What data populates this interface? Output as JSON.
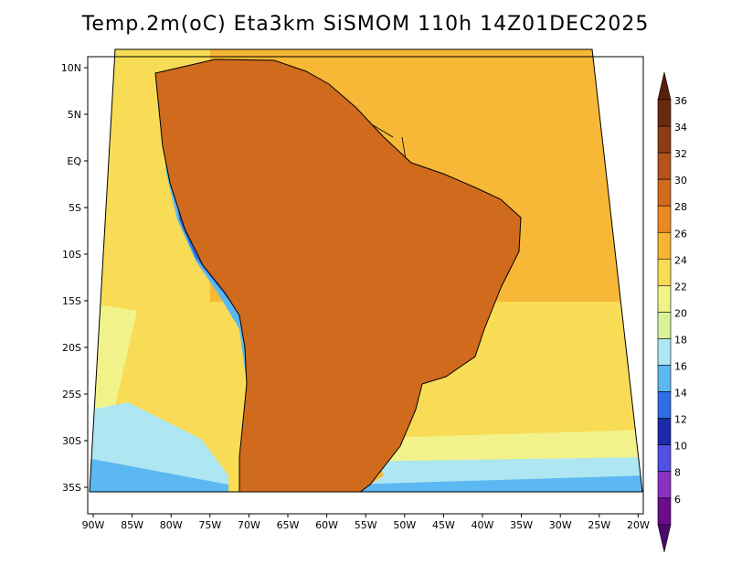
{
  "title": "Temp.2m(oC) Eta3km SiSMOM 110h 14Z01DEC2025",
  "lon_labels": [
    "90W",
    "85W",
    "80W",
    "75W",
    "70W",
    "65W",
    "60W",
    "55W",
    "50W",
    "45W",
    "40W",
    "35W",
    "30W",
    "25W",
    "20W"
  ],
  "lat_labels": [
    "10N",
    "5N",
    "EQ",
    "5S",
    "10S",
    "15S",
    "20S",
    "25S",
    "30S",
    "35S"
  ],
  "colorbar": {
    "labels": [
      "36",
      "34",
      "32",
      "30",
      "28",
      "26",
      "24",
      "22",
      "20",
      "18",
      "16",
      "14",
      "12",
      "10",
      "8",
      "6"
    ],
    "colors": [
      "#6b2a10",
      "#8e3c12",
      "#b4541a",
      "#d06a1c",
      "#ea8a24",
      "#f5b633",
      "#f8dc55",
      "#f2f28a",
      "#d8f29a",
      "#aee6f2",
      "#5cb8f2",
      "#2f6ee6",
      "#1a2aa8",
      "#5450e2",
      "#8c30c2",
      "#6a0c8c"
    ],
    "top_color": "#5a1e0c",
    "bottom_color": "#4c086c"
  },
  "map": {
    "background_colors": {
      "warm_ocean": "#f6b836",
      "mild_ocean": "#f8dc55",
      "cool_ocean": "#aee6f2",
      "cold_ocean": "#5cb8f2",
      "land_hot": "#d06a1c",
      "land_very_hot": "#8e3c12",
      "andes": "#2f6ee6",
      "andes_peaks": "#6a0c8c"
    }
  }
}
